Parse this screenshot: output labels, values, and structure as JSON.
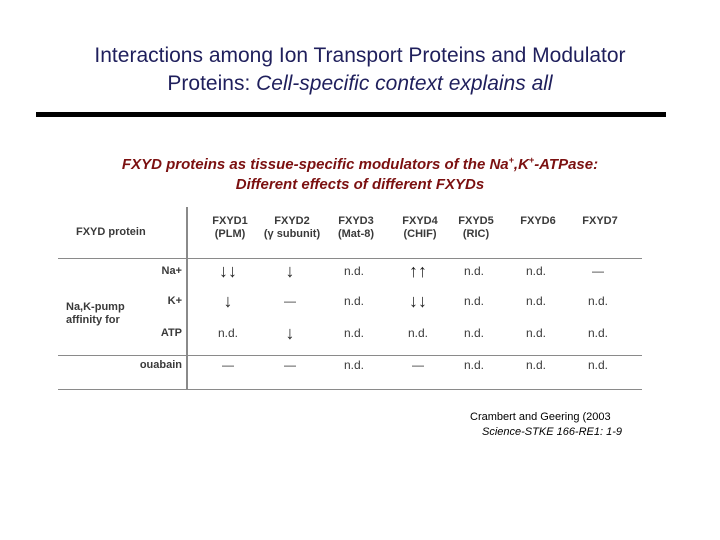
{
  "title": {
    "line1": "Interactions among Ion Transport Proteins and Modulator",
    "line2_plain": "Proteins: ",
    "line2_italic": "Cell-specific context explains all"
  },
  "subtitle": {
    "line1_a": "FXYD proteins as tissue-specific modulators of the Na",
    "sup1": "+",
    "line1_b": ",K",
    "sup2": "+",
    "line1_c": "-ATPase:",
    "line2": "Different effects of different FXYDs"
  },
  "table": {
    "corner_label": "FXYD protein",
    "group_label_1": "Na,K-pump",
    "group_label_2": "affinity for",
    "columns": [
      {
        "name": "FXYD1",
        "sub": "(PLM)"
      },
      {
        "name": "FXYD2",
        "sub": "(γ subunit)"
      },
      {
        "name": "FXYD3",
        "sub": "(Mat-8)"
      },
      {
        "name": "FXYD4",
        "sub": "(CHIF)"
      },
      {
        "name": "FXYD5",
        "sub": "(RIC)"
      },
      {
        "name": "FXYD6",
        "sub": ""
      },
      {
        "name": "FXYD7",
        "sub": ""
      }
    ],
    "rows": [
      {
        "label": "Na+",
        "cells": [
          "↓↓",
          "↓",
          "n.d.",
          "↑↑",
          "n.d.",
          "n.d.",
          "—"
        ]
      },
      {
        "label": "K+",
        "cells": [
          "↓",
          "—",
          "n.d.",
          "↓↓",
          "n.d.",
          "n.d.",
          "n.d."
        ]
      },
      {
        "label": "ATP",
        "cells": [
          "n.d.",
          "↓",
          "n.d.",
          "n.d.",
          "n.d.",
          "n.d.",
          "n.d."
        ]
      },
      {
        "label": "ouabain",
        "cells": [
          "—",
          "—",
          "n.d.",
          "—",
          "n.d.",
          "n.d.",
          "n.d."
        ]
      }
    ]
  },
  "citation": {
    "line1": "Crambert and Geering (2003",
    "line2": "Science-STKE 166-RE1: 1-9"
  }
}
